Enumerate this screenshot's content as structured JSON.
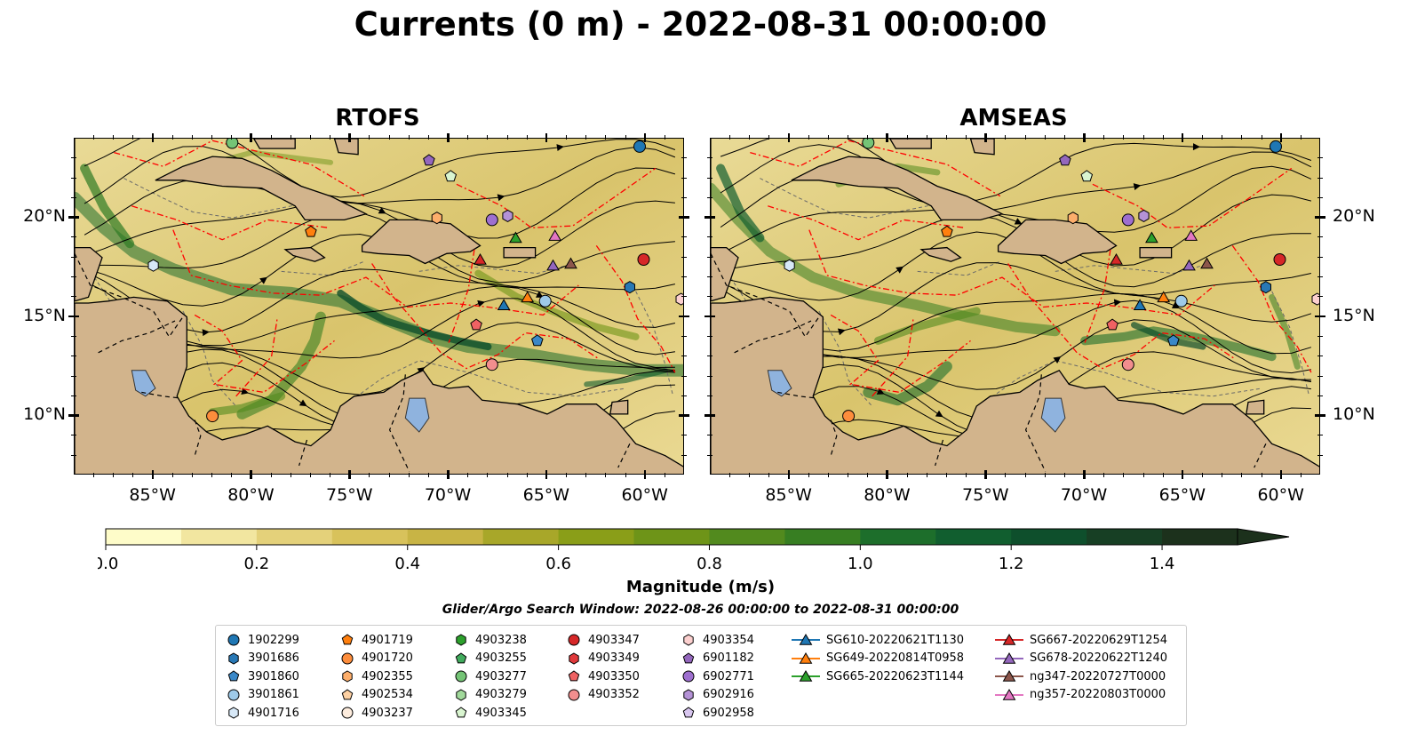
{
  "title": "Currents (0 m) - 2022-08-31 00:00:00",
  "panels": [
    {
      "title": "RTOFS"
    },
    {
      "title": "AMSEAS"
    }
  ],
  "map_extent": {
    "lon": [
      -89,
      -58
    ],
    "lat": [
      7,
      24
    ]
  },
  "lon_ticks": [
    {
      "value": -85,
      "label": "85°W"
    },
    {
      "value": -80,
      "label": "80°W"
    },
    {
      "value": -75,
      "label": "75°W"
    },
    {
      "value": -70,
      "label": "70°W"
    },
    {
      "value": -65,
      "label": "65°W"
    },
    {
      "value": -60,
      "label": "60°W"
    }
  ],
  "lat_ticks": [
    {
      "value": 20,
      "label": "20°N"
    },
    {
      "value": 15,
      "label": "15°N"
    },
    {
      "value": 10,
      "label": "10°N"
    }
  ],
  "colorbar": {
    "label": "Magnitude (m/s)",
    "min": 0.0,
    "max": 1.5,
    "step": 0.1,
    "extend": "max",
    "ticks": [
      "0.0",
      "0.2",
      "0.4",
      "0.6",
      "0.8",
      "1.0",
      "1.2",
      "1.4"
    ],
    "colors": [
      "#fefcc9",
      "#f2e6a0",
      "#e4d17a",
      "#d8c25b",
      "#c8b445",
      "#a8a729",
      "#8a9e18",
      "#6e9418",
      "#528a1e",
      "#377e22",
      "#1d6e2b",
      "#115e2f",
      "#0e4f2c",
      "#173f24",
      "#1c311c"
    ]
  },
  "search_window": "Glider/Argo Search Window: 2022-08-26 00:00:00 to 2022-08-31 00:00:00",
  "colors": {
    "land": "#d2b48c",
    "pacific": "#8fb3de",
    "lake": "#8fb3de",
    "eez": "#ff0000"
  },
  "legend": [
    {
      "label": "1902299",
      "marker": "circle",
      "color": "#1f77b4"
    },
    {
      "label": "3901686",
      "marker": "hexagon",
      "color": "#2878b5"
    },
    {
      "label": "3901860",
      "marker": "pentagon",
      "color": "#3a88c8"
    },
    {
      "label": "3901861",
      "marker": "circle",
      "color": "#9ecae9"
    },
    {
      "label": "4901716",
      "marker": "hexagon",
      "color": "#d7e8f7"
    },
    {
      "label": "4901719",
      "marker": "pentagon",
      "color": "#ff7f0e"
    },
    {
      "label": "4901720",
      "marker": "circle",
      "color": "#fd8d3c"
    },
    {
      "label": "4902355",
      "marker": "hexagon",
      "color": "#fdae6b"
    },
    {
      "label": "4902534",
      "marker": "pentagon",
      "color": "#fdd0a2"
    },
    {
      "label": "4903237",
      "marker": "circle",
      "color": "#feedde"
    },
    {
      "label": "4903238",
      "marker": "hexagon",
      "color": "#2ca02c"
    },
    {
      "label": "4903255",
      "marker": "pentagon",
      "color": "#41ab5d"
    },
    {
      "label": "4903277",
      "marker": "circle",
      "color": "#74c476"
    },
    {
      "label": "4903279",
      "marker": "hexagon",
      "color": "#a1d99b"
    },
    {
      "label": "4903345",
      "marker": "pentagon",
      "color": "#d9f5d0"
    },
    {
      "label": "4903347",
      "marker": "circle",
      "color": "#d62728"
    },
    {
      "label": "4903349",
      "marker": "hexagon",
      "color": "#e0393b"
    },
    {
      "label": "4903350",
      "marker": "pentagon",
      "color": "#ef6263"
    },
    {
      "label": "4903352",
      "marker": "circle",
      "color": "#f28e8e"
    },
    {
      "label": "4903354",
      "marker": "hexagon",
      "color": "#fcd0cf"
    },
    {
      "label": "6901182",
      "marker": "pentagon",
      "color": "#9467bd"
    },
    {
      "label": "6902771",
      "marker": "circle",
      "color": "#9e6fcf"
    },
    {
      "label": "6902916",
      "marker": "hexagon",
      "color": "#b492d6"
    },
    {
      "label": "6902958",
      "marker": "pentagon",
      "color": "#d8c6ef"
    },
    {
      "label": "SG610-20220621T1130",
      "marker": "triangle",
      "color": "#1f77b4"
    },
    {
      "label": "SG649-20220814T0958",
      "marker": "triangle",
      "color": "#ff7f0e"
    },
    {
      "label": "SG665-20220623T1144",
      "marker": "triangle",
      "color": "#2ca02c"
    },
    {
      "label": "SG667-20220629T1254",
      "marker": "triangle",
      "color": "#d62728"
    },
    {
      "label": "SG678-20220622T1240",
      "marker": "triangle",
      "color": "#9467bd"
    },
    {
      "label": "ng347-20220727T0000",
      "marker": "triangle",
      "color": "#8c564b"
    },
    {
      "label": "ng357-20220803T0000",
      "marker": "triangle",
      "color": "#e377c2"
    }
  ],
  "platform_positions": [
    {
      "label": "1902299",
      "lon": -60.3,
      "lat": 23.6
    },
    {
      "label": "3901686",
      "lon": -60.8,
      "lat": 16.5
    },
    {
      "label": "3901860",
      "lon": -65.5,
      "lat": 13.8
    },
    {
      "label": "3901861",
      "lon": -65.1,
      "lat": 15.8
    },
    {
      "label": "4901716",
      "lon": -85.0,
      "lat": 17.6
    },
    {
      "label": "4901719",
      "lon": -77.0,
      "lat": 19.3
    },
    {
      "label": "4901720",
      "lon": -82.0,
      "lat": 10.0
    },
    {
      "label": "4902355",
      "lon": -70.6,
      "lat": 20.0
    },
    {
      "label": "4903277",
      "lon": -81.0,
      "lat": 23.8
    },
    {
      "label": "4903345",
      "lon": -69.9,
      "lat": 22.1
    },
    {
      "label": "4903347",
      "lon": -60.1,
      "lat": 17.9
    },
    {
      "label": "4903350",
      "lon": -68.6,
      "lat": 14.6
    },
    {
      "label": "4903352",
      "lon": -67.8,
      "lat": 12.6
    },
    {
      "label": "4903354",
      "lon": -58.2,
      "lat": 15.9
    },
    {
      "label": "6901182",
      "lon": -71.0,
      "lat": 22.9
    },
    {
      "label": "6902771",
      "lon": -67.8,
      "lat": 19.9
    },
    {
      "label": "6902916",
      "lon": -67.0,
      "lat": 20.1
    },
    {
      "label": "SG610-20220621T1130",
      "lon": -67.2,
      "lat": 15.6
    },
    {
      "label": "SG649-20220814T0958",
      "lon": -66.0,
      "lat": 16.0
    },
    {
      "label": "SG665-20220623T1144",
      "lon": -66.6,
      "lat": 19.0
    },
    {
      "label": "SG667-20220629T1254",
      "lon": -68.4,
      "lat": 17.9
    },
    {
      "label": "SG678-20220622T1240",
      "lon": -64.7,
      "lat": 17.6
    },
    {
      "label": "ng347-20220727T0000",
      "lon": -63.8,
      "lat": 17.7
    },
    {
      "label": "ng357-20220803T0000",
      "lon": -64.6,
      "lat": 19.1
    }
  ]
}
